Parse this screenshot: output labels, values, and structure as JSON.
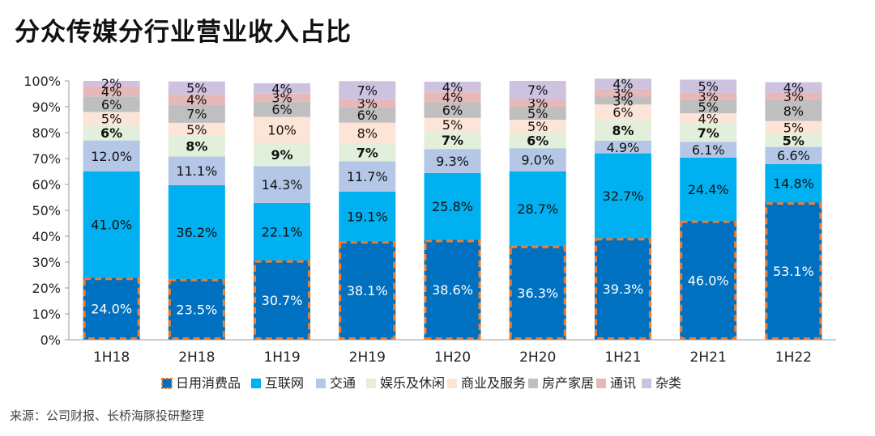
{
  "title": "分众传媒分行业营业收入占比",
  "source": "来源：公司财报、长桥海豚投研整理",
  "chart_data": {
    "type": "bar",
    "stacked": true,
    "categories": [
      "1H18",
      "2H18",
      "1H19",
      "2H19",
      "1H20",
      "2H20",
      "1H21",
      "2H21",
      "1H22"
    ],
    "ylim": [
      0,
      100
    ],
    "yticks": [
      "0%",
      "10%",
      "20%",
      "30%",
      "40%",
      "50%",
      "60%",
      "70%",
      "80%",
      "90%",
      "100%"
    ],
    "legend_position": "bottom",
    "series": [
      {
        "name": "日用消费品",
        "color": "#0070C0",
        "highlight": true,
        "values": [
          24.0,
          23.5,
          30.7,
          38.1,
          38.6,
          36.3,
          39.3,
          46.0,
          53.1
        ],
        "labels": [
          "24.0%",
          "23.5%",
          "30.7%",
          "38.1%",
          "38.6%",
          "36.3%",
          "39.3%",
          "46.0%",
          "53.1%"
        ]
      },
      {
        "name": "互联网",
        "color": "#00B0F0",
        "values": [
          41.0,
          36.2,
          22.1,
          19.1,
          25.8,
          28.7,
          32.7,
          24.4,
          14.8
        ],
        "labels": [
          "41.0%",
          "36.2%",
          "22.1%",
          "19.1%",
          "25.8%",
          "28.7%",
          "32.7%",
          "24.4%",
          "14.8%"
        ]
      },
      {
        "name": "交通",
        "color": "#B4C7E7",
        "values": [
          12.0,
          11.1,
          14.3,
          11.7,
          9.3,
          9.0,
          4.9,
          6.1,
          6.6
        ],
        "labels": [
          "12.0%",
          "11.1%",
          "14.3%",
          "11.7%",
          "9.3%",
          "9.0%",
          "4.9%",
          "6.1%",
          "6.6%"
        ]
      },
      {
        "name": "娱乐及休闲",
        "color": "#E2EFDA",
        "values": [
          6,
          8,
          9,
          7,
          7,
          6,
          8,
          7,
          5
        ],
        "labels": [
          "6%",
          "8%",
          "9%",
          "7%",
          "7%",
          "6%",
          "8%",
          "7%",
          "5%"
        ]
      },
      {
        "name": "商业及服务",
        "color": "#FCE4D6",
        "values": [
          5,
          5,
          10,
          8,
          5,
          5,
          6,
          4,
          5
        ],
        "labels": [
          "5%",
          "5%",
          "10%",
          "8%",
          "5%",
          "5%",
          "6%",
          "4%",
          "5%"
        ]
      },
      {
        "name": "房产家居",
        "color": "#BFBFBF",
        "values": [
          6,
          7,
          6,
          6,
          6,
          5,
          3,
          5,
          8
        ],
        "labels": [
          "6%",
          "7%",
          "6%",
          "6%",
          "6%",
          "5%",
          "3%",
          "5%",
          "8%"
        ]
      },
      {
        "name": "通讯",
        "color": "#E6B9B8",
        "values": [
          4,
          4,
          3,
          3,
          4,
          3,
          3,
          3,
          3
        ],
        "labels": [
          "4%",
          "4%",
          "3%",
          "3%",
          "4%",
          "3%",
          "3%",
          "3%",
          "3%"
        ]
      },
      {
        "name": "杂类",
        "color": "#CDC3E0",
        "values": [
          2,
          5,
          4,
          7,
          4,
          7,
          4,
          5,
          4
        ],
        "labels": [
          "2%",
          "5%",
          "4%",
          "7%",
          "4%",
          "7%",
          "4%",
          "5%",
          "4%"
        ]
      }
    ]
  }
}
